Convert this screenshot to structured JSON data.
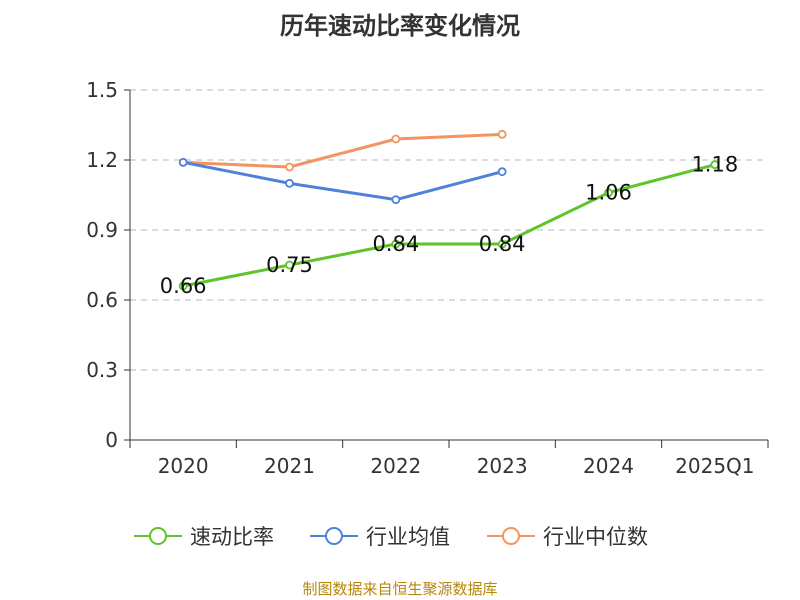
{
  "chart_data": {
    "type": "line",
    "title": "历年速动比率变化情况",
    "categories": [
      "2020",
      "2021",
      "2022",
      "2023",
      "2024",
      "2025Q1"
    ],
    "ylim": [
      0,
      1.5
    ],
    "yticks": [
      "0",
      "0.3",
      "0.6",
      "0.9",
      "1.2",
      "1.5"
    ],
    "grid": true,
    "legend_position": "bottom",
    "series": [
      {
        "name": "速动比率",
        "color": "#5ec42a",
        "values": [
          0.66,
          0.75,
          0.84,
          0.84,
          1.06,
          1.18
        ],
        "data_labels": [
          "0.66",
          "0.75",
          "0.84",
          "0.84",
          "1.06",
          "1.18"
        ]
      },
      {
        "name": "行业均值",
        "color": "#4f81db",
        "values": [
          1.19,
          1.1,
          1.03,
          1.15,
          null,
          null
        ]
      },
      {
        "name": "行业中位数",
        "color": "#f39461",
        "values": [
          1.19,
          1.17,
          1.29,
          1.31,
          null,
          null
        ]
      }
    ]
  },
  "footer": {
    "source": "制图数据来自恒生聚源数据库"
  }
}
